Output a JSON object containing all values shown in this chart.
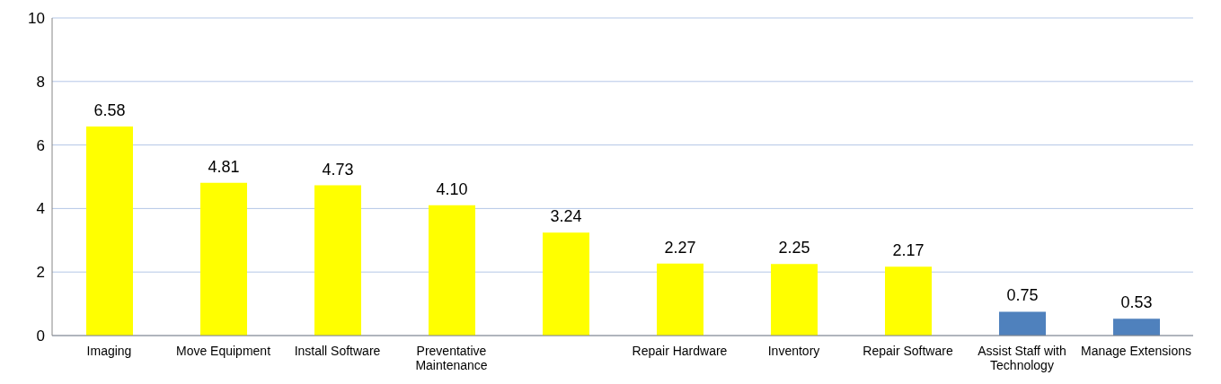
{
  "chart_data": {
    "type": "bar",
    "categories": [
      "Imaging",
      "Move Equipment",
      "Install Software",
      "Preventative Maintenance",
      null,
      "Repair Hardware",
      "Inventory",
      "Repair Software",
      "Assist Staff with Technology",
      "Manage Extensions"
    ],
    "values": [
      6.58,
      4.81,
      4.73,
      4.1,
      3.24,
      2.27,
      2.25,
      2.17,
      0.75,
      0.53
    ],
    "colors": [
      "#ffff00",
      "#ffff00",
      "#ffff00",
      "#ffff00",
      "#ffff00",
      "#ffff00",
      "#ffff00",
      "#ffff00",
      "#4f81bd",
      "#4f81bd"
    ],
    "value_labels": [
      "6.58",
      "4.81",
      "4.73",
      "4.10",
      "3.24",
      "2.27",
      "2.25",
      "2.17",
      "0.75",
      "0.53"
    ],
    "ylim": [
      0,
      10
    ],
    "yticks": [
      0,
      2,
      4,
      6,
      8,
      10
    ],
    "grid": "y"
  }
}
